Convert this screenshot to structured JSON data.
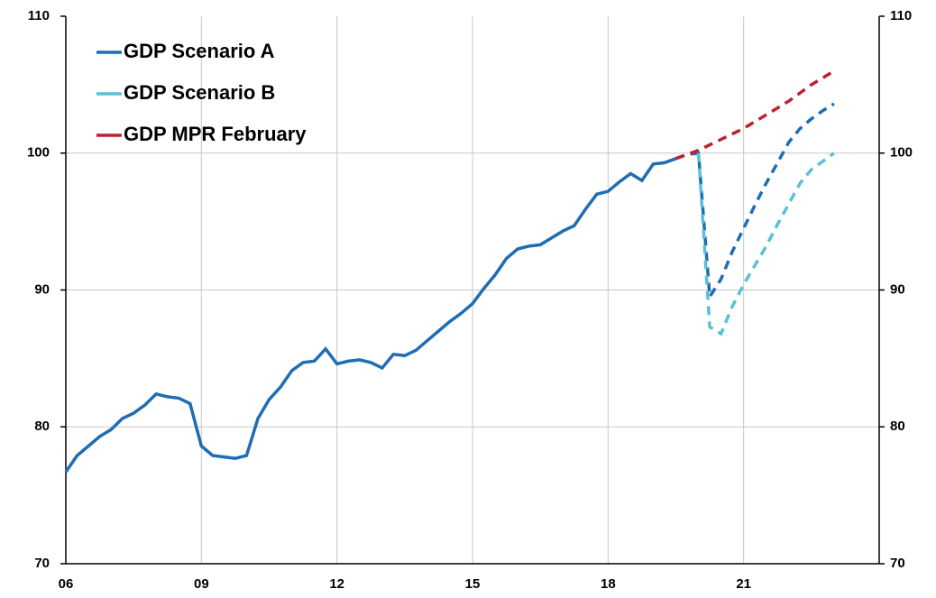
{
  "chart_data": {
    "type": "line",
    "x": [
      2006,
      2006.25,
      2006.5,
      2006.75,
      2007,
      2007.25,
      2007.5,
      2007.75,
      2008,
      2008.25,
      2008.5,
      2008.75,
      2009,
      2009.25,
      2009.5,
      2009.75,
      2010,
      2010.25,
      2010.5,
      2010.75,
      2011,
      2011.25,
      2011.5,
      2011.75,
      2012,
      2012.25,
      2012.5,
      2012.75,
      2013,
      2013.25,
      2013.5,
      2013.75,
      2014,
      2014.25,
      2014.5,
      2014.75,
      2015,
      2015.25,
      2015.5,
      2015.75,
      2016,
      2016.25,
      2016.5,
      2016.75,
      2017,
      2017.25,
      2017.5,
      2017.75,
      2018,
      2018.25,
      2018.5,
      2018.75,
      2019,
      2019.25,
      2019.5,
      2019.75,
      2020,
      2020.25,
      2020.5,
      2020.75,
      2021,
      2021.25,
      2021.5,
      2021.75,
      2022,
      2022.25,
      2022.5,
      2022.75,
      2023
    ],
    "series": [
      {
        "name": "GDP Scenario A",
        "color": "#1f6db3",
        "values": [
          76.7,
          77.9,
          78.6,
          79.3,
          79.8,
          80.6,
          81.0,
          81.6,
          82.4,
          82.2,
          82.1,
          81.7,
          78.6,
          77.9,
          77.8,
          77.7,
          77.9,
          80.6,
          82.0,
          82.9,
          84.1,
          84.7,
          84.8,
          85.7,
          84.6,
          84.8,
          84.9,
          84.7,
          84.3,
          85.3,
          85.2,
          85.6,
          86.3,
          87.0,
          87.7,
          88.3,
          89.0,
          90.1,
          91.1,
          92.3,
          93.0,
          93.2,
          93.3,
          93.8,
          94.3,
          94.7,
          95.9,
          97.0,
          97.2,
          97.9,
          98.5,
          98.0,
          99.2,
          99.3,
          99.6,
          99.9,
          100.0,
          89.5,
          90.8,
          92.8,
          94.5,
          96.2,
          97.8,
          99.3,
          100.8,
          101.8,
          102.5,
          103.1,
          103.6
        ]
      },
      {
        "name": "GDP Scenario B",
        "color": "#5bc0d6",
        "values": [
          null,
          null,
          null,
          null,
          null,
          null,
          null,
          null,
          null,
          null,
          null,
          null,
          null,
          null,
          null,
          null,
          null,
          null,
          null,
          null,
          null,
          null,
          null,
          null,
          null,
          null,
          null,
          null,
          null,
          null,
          null,
          null,
          null,
          null,
          null,
          null,
          null,
          null,
          null,
          null,
          null,
          null,
          null,
          null,
          null,
          null,
          null,
          null,
          null,
          null,
          null,
          null,
          null,
          null,
          null,
          null,
          100.0,
          87.3,
          86.8,
          88.8,
          90.4,
          91.8,
          93.2,
          94.8,
          96.3,
          97.8,
          98.8,
          99.4,
          100.0
        ]
      },
      {
        "name": "GDP MPR February",
        "color": "#c0202e",
        "values": [
          null,
          null,
          null,
          null,
          null,
          null,
          null,
          null,
          null,
          null,
          null,
          null,
          null,
          null,
          null,
          null,
          null,
          null,
          null,
          null,
          null,
          null,
          null,
          null,
          null,
          null,
          null,
          null,
          null,
          null,
          null,
          null,
          null,
          null,
          null,
          null,
          null,
          null,
          null,
          null,
          null,
          null,
          null,
          null,
          null,
          null,
          null,
          null,
          null,
          null,
          null,
          null,
          null,
          null,
          99.6,
          99.9,
          100.2,
          100.6,
          101.0,
          101.4,
          101.8,
          102.3,
          102.8,
          103.3,
          103.8,
          104.4,
          105.0,
          105.5,
          106.0
        ]
      }
    ],
    "dashed_from_x": 2019.75,
    "xlim": [
      2006,
      2024
    ],
    "xticks": [
      {
        "value": 2006,
        "label": "06"
      },
      {
        "value": 2009,
        "label": "09"
      },
      {
        "value": 2012,
        "label": "12"
      },
      {
        "value": 2015,
        "label": "15"
      },
      {
        "value": 2018,
        "label": "18"
      },
      {
        "value": 2021,
        "label": "21"
      }
    ],
    "ylim": [
      70,
      110
    ],
    "yticks": [
      70,
      80,
      90,
      100,
      110
    ],
    "y2lim": [
      70,
      110
    ],
    "y2ticks": [
      70,
      80,
      90,
      100,
      110
    ],
    "grid": true,
    "legend": "upper left"
  }
}
